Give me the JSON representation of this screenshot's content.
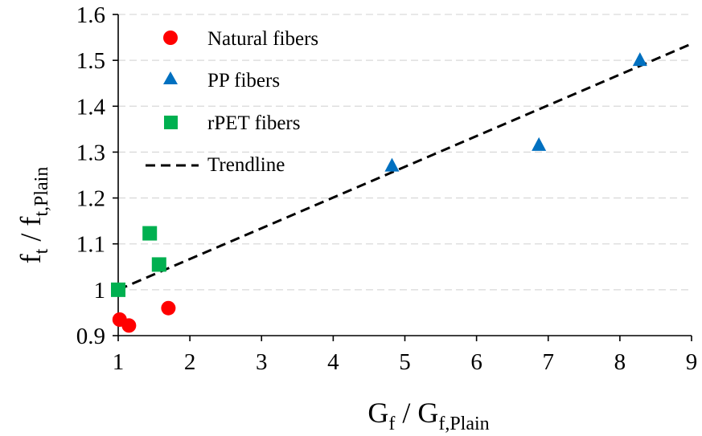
{
  "chart_data": {
    "type": "scatter",
    "xlabel": {
      "main": "G",
      "sub": "f",
      "sep": " / ",
      "main2": "G",
      "sub2": "f,Plain"
    },
    "ylabel": {
      "main": "f",
      "sub": "t",
      "sep": " / ",
      "main2": "f",
      "sub2": "t,Plain"
    },
    "xlim": [
      1,
      9
    ],
    "ylim": [
      0.9,
      1.6
    ],
    "xticks": [
      1,
      2,
      3,
      4,
      5,
      6,
      7,
      8,
      9
    ],
    "xtick_labels": [
      "1",
      "2",
      "3",
      "4",
      "5",
      "6",
      "7",
      "8",
      "9"
    ],
    "yticks": [
      0.9,
      1.0,
      1.1,
      1.2,
      1.3,
      1.4,
      1.5,
      1.6
    ],
    "ytick_labels": [
      "0.9",
      "1",
      "1.1",
      "1.2",
      "1.3",
      "1.4",
      "1.5",
      "1.6"
    ],
    "grid": "horizontal-dashed",
    "legend_position": "top-left",
    "series": [
      {
        "name": "Natural fibers",
        "marker": "circle",
        "color": "#ff0000",
        "x": [
          1.02,
          1.15,
          1.7
        ],
        "y": [
          0.935,
          0.922,
          0.96
        ]
      },
      {
        "name": "PP fibers",
        "marker": "triangle",
        "color": "#0070c0",
        "x": [
          4.82,
          6.87,
          8.28
        ],
        "y": [
          1.27,
          1.315,
          1.5
        ]
      },
      {
        "name": "rPET fibers",
        "marker": "square",
        "color": "#00b050",
        "x": [
          1.0,
          1.44,
          1.57
        ],
        "y": [
          1.0,
          1.123,
          1.055
        ]
      }
    ],
    "trendline": {
      "name": "Trendline",
      "style": "dashed",
      "color": "#000000",
      "x": [
        1,
        9
      ],
      "y": [
        1.0,
        1.536
      ]
    }
  }
}
